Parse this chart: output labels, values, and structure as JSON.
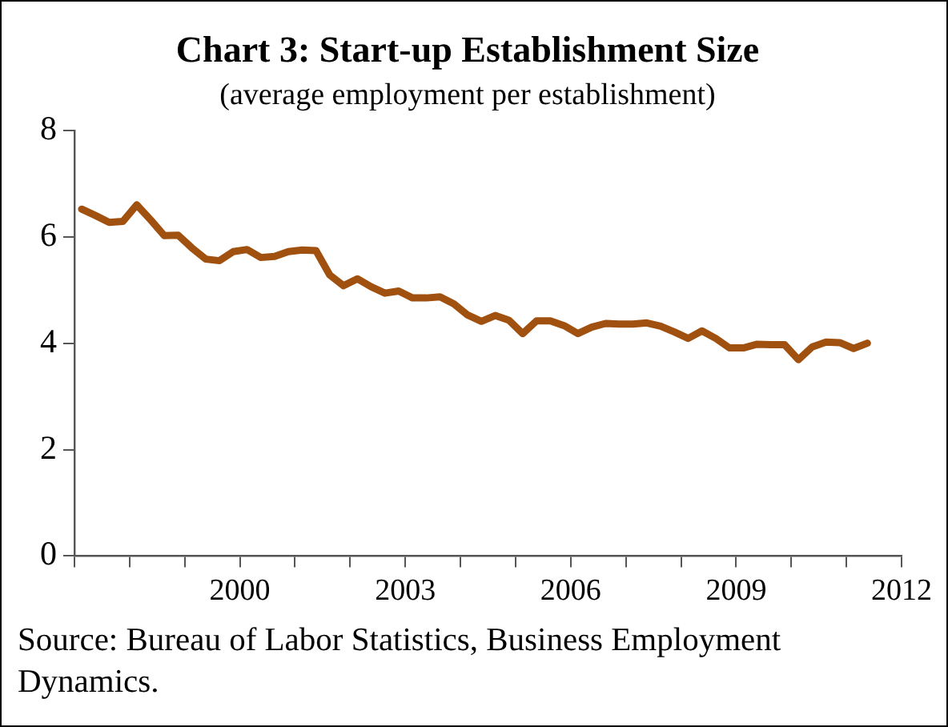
{
  "chart_data": {
    "type": "line",
    "title": "Chart 3: Start-up Establishment Size",
    "subtitle": "(average employment per establishment)",
    "x": [
      1997.13,
      1997.38,
      1997.63,
      1997.88,
      1998.13,
      1998.38,
      1998.63,
      1998.88,
      1999.13,
      1999.38,
      1999.63,
      1999.88,
      2000.13,
      2000.38,
      2000.63,
      2000.88,
      2001.13,
      2001.38,
      2001.63,
      2001.88,
      2002.13,
      2002.38,
      2002.63,
      2002.88,
      2003.13,
      2003.38,
      2003.63,
      2003.88,
      2004.13,
      2004.38,
      2004.63,
      2004.88,
      2005.13,
      2005.38,
      2005.63,
      2005.88,
      2006.13,
      2006.38,
      2006.63,
      2006.88,
      2007.13,
      2007.38,
      2007.63,
      2007.88,
      2008.13,
      2008.38,
      2008.63,
      2008.88,
      2009.13,
      2009.38,
      2009.63,
      2009.88,
      2010.13,
      2010.38,
      2010.63,
      2010.88,
      2011.13,
      2011.38
    ],
    "series": [
      {
        "color": "#a0500f",
        "values": [
          6.52,
          6.4,
          6.27,
          6.29,
          6.6,
          6.32,
          6.02,
          6.03,
          5.79,
          5.58,
          5.55,
          5.72,
          5.76,
          5.61,
          5.63,
          5.72,
          5.75,
          5.74,
          5.28,
          5.08,
          5.21,
          5.06,
          4.94,
          4.98,
          4.85,
          4.85,
          4.87,
          4.74,
          4.53,
          4.41,
          4.52,
          4.43,
          4.18,
          4.42,
          4.42,
          4.33,
          4.18,
          4.3,
          4.37,
          4.36,
          4.36,
          4.38,
          4.32,
          4.21,
          4.09,
          4.23,
          4.09,
          3.91,
          3.91,
          3.98,
          3.97,
          3.97,
          3.69,
          3.93,
          4.02,
          4.01,
          3.9,
          4.0
        ]
      }
    ],
    "xlim": [
      1997,
      2012
    ],
    "xticks": [
      {
        "value": 1997,
        "label": null
      },
      {
        "value": 1998,
        "label": null
      },
      {
        "value": 1999,
        "label": null
      },
      2000,
      {
        "value": 2001,
        "label": null
      },
      {
        "value": 2002,
        "label": null
      },
      2003,
      {
        "value": 2004,
        "label": null
      },
      {
        "value": 2005,
        "label": null
      },
      2006,
      {
        "value": 2007,
        "label": null
      },
      {
        "value": 2008,
        "label": null
      },
      2009,
      {
        "value": 2010,
        "label": null
      },
      {
        "value": 2011,
        "label": null
      },
      2012
    ],
    "ylim": [
      0,
      8
    ],
    "yticks": [
      0,
      2,
      4,
      6,
      8
    ],
    "grid": false,
    "legend": false,
    "marker": "none",
    "line_style": "solid",
    "annotations": [
      "Source: Bureau of Labor Statistics, Business Employment Dynamics."
    ]
  }
}
